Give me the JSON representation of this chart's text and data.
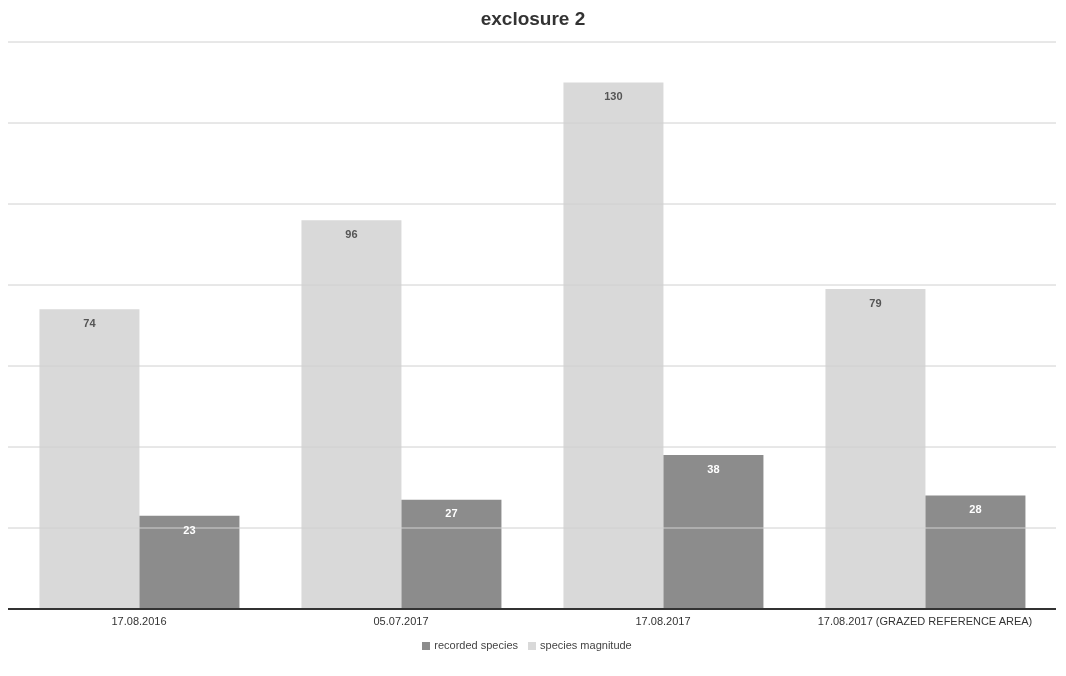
{
  "chart_data": {
    "type": "bar",
    "title": "exclosure 2",
    "categories": [
      "17.08.2016",
      "05.07.2017",
      "17.08.2017",
      "17.08.2017  (GRAZED REFERENCE AREA)"
    ],
    "series": [
      {
        "name": "species magnitude",
        "color": "#d9d9d9",
        "values": [
          74,
          96,
          130,
          79
        ]
      },
      {
        "name": "recorded species",
        "color": "#8c8c8c",
        "values": [
          23,
          27,
          38,
          28
        ]
      }
    ],
    "ylim": [
      0,
      140
    ],
    "yticks": [
      {
        "value": 0,
        "label": null
      },
      {
        "value": 20,
        "label": null
      },
      {
        "value": 40,
        "label": null
      },
      {
        "value": 60,
        "label": null
      },
      {
        "value": 80,
        "label": null
      },
      {
        "value": 100,
        "label": null
      },
      {
        "value": 120,
        "label": null
      },
      {
        "value": 140,
        "label": null
      }
    ],
    "tick_labels": "x",
    "grid": "y",
    "legend": "bottom",
    "data_labels": true
  }
}
